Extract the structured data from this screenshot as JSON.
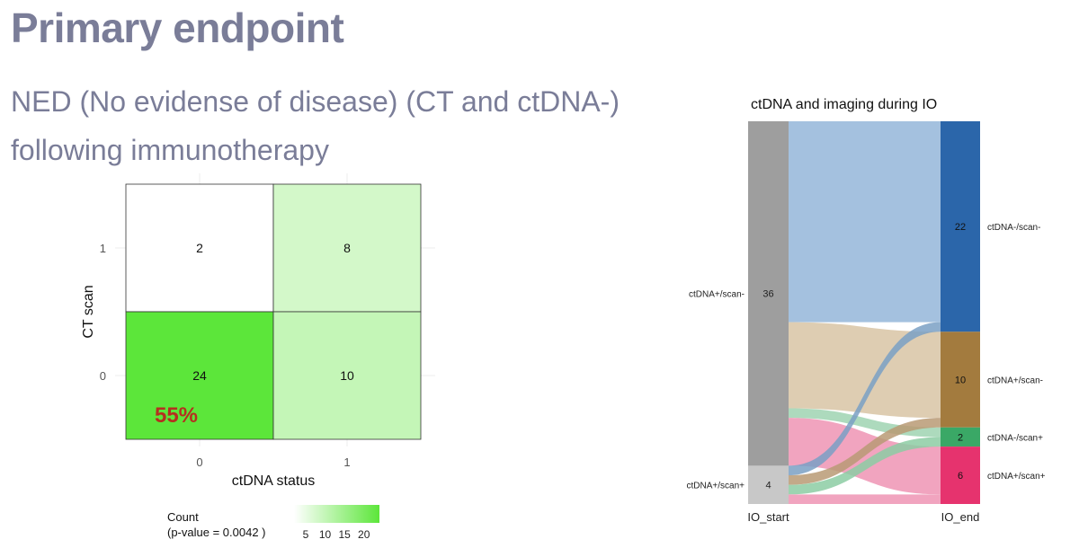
{
  "slide": {
    "title": "Primary endpoint",
    "subtitle_line1": "NED (No evidense of disease) (CT and ctDNA-)",
    "subtitle_line2": "following immunotherapy"
  },
  "chart_data": [
    {
      "type": "heatmap",
      "x_categories": [
        "0",
        "1"
      ],
      "y_categories": [
        "0",
        "1"
      ],
      "xlabel": "ctDNA status",
      "ylabel": "CT scan",
      "cells": [
        {
          "x": "1",
          "y": "1",
          "value": 2
        },
        {
          "x": "2",
          "y": "1",
          "value": 8
        },
        {
          "x": "1",
          "y": "0",
          "value": 24,
          "annotation": "55%"
        },
        {
          "x": "2",
          "y": "0",
          "value": 10
        }
      ],
      "colorscale": {
        "low": "#ffffff",
        "high": "#5ce63a",
        "min": 2,
        "max": 24
      },
      "legend": {
        "title_line1": "Count",
        "title_line2": "(p-value = 0.0042 )",
        "ticks": [
          "5",
          "10",
          "15",
          "20"
        ],
        "placement": "bottom"
      },
      "annotation_color": "#b5301f"
    },
    {
      "type": "sankey",
      "title": "ctDNA and imaging during IO",
      "axes": [
        "IO_start",
        "IO_end"
      ],
      "start_nodes": [
        {
          "name": "ctDNA+/scan-",
          "value": 36,
          "color": "#9e9e9e"
        },
        {
          "name": "ctDNA+/scan+",
          "value": 4,
          "color": "#c8c8c8"
        }
      ],
      "end_nodes": [
        {
          "name": "ctDNA-/scan-",
          "value": 22,
          "color": "#2b66aa"
        },
        {
          "name": "ctDNA+/scan-",
          "value": 10,
          "color": "#a37b3e"
        },
        {
          "name": "ctDNA-/scan+",
          "value": 2,
          "color": "#3aa866"
        },
        {
          "name": "ctDNA+/scan+",
          "value": 6,
          "color": "#e6336e"
        }
      ],
      "flows": [
        {
          "from": "ctDNA+/scan-",
          "to": "ctDNA-/scan-",
          "value": 21,
          "color": "#94b6d9"
        },
        {
          "from": "ctDNA+/scan-",
          "to": "ctDNA+/scan-",
          "value": 9,
          "color": "#d8c4a5"
        },
        {
          "from": "ctDNA+/scan-",
          "to": "ctDNA-/scan+",
          "value": 1,
          "color": "#9fd4b2"
        },
        {
          "from": "ctDNA+/scan-",
          "to": "ctDNA+/scan+",
          "value": 5,
          "color": "#ee94b4"
        },
        {
          "from": "ctDNA+/scan+",
          "to": "ctDNA-/scan-",
          "value": 1,
          "color": "#7aa0c4"
        },
        {
          "from": "ctDNA+/scan+",
          "to": "ctDNA+/scan-",
          "value": 1,
          "color": "#b89a74"
        },
        {
          "from": "ctDNA+/scan+",
          "to": "ctDNA-/scan+",
          "value": 1,
          "color": "#8ccca3"
        },
        {
          "from": "ctDNA+/scan+",
          "to": "ctDNA+/scan+",
          "value": 1,
          "color": "#ee94b4"
        }
      ]
    }
  ]
}
